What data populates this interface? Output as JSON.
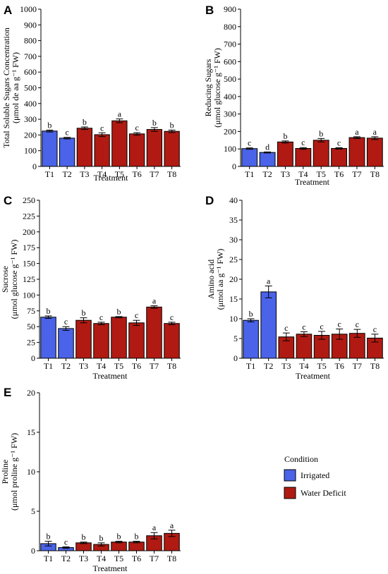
{
  "condition_colors": {
    "Irrigated": "#4a63e8",
    "Water Deficit": "#b01a12"
  },
  "legend": {
    "title": "Condition",
    "items": [
      {
        "label": "Irrigated",
        "color": "#4a63e8"
      },
      {
        "label": "Water Deficit",
        "color": "#b01a12"
      }
    ]
  },
  "chart_data": [
    {
      "type": "bar",
      "panel": "A",
      "categories": [
        "T1",
        "T2",
        "T3",
        "T4",
        "T5",
        "T6",
        "T7",
        "T8"
      ],
      "conditions": [
        "Irrigated",
        "Irrigated",
        "Water Deficit",
        "Water Deficit",
        "Water Deficit",
        "Water Deficit",
        "Water Deficit",
        "Water Deficit"
      ],
      "values": [
        225,
        180,
        243,
        202,
        290,
        207,
        235,
        223
      ],
      "errors": [
        6,
        5,
        8,
        12,
        12,
        8,
        12,
        8
      ],
      "letters": [
        "b",
        "c",
        "b",
        "c",
        "a",
        "c",
        "b",
        "b"
      ],
      "xlabel": "Treatment",
      "ylabel": [
        "Total Soluble Sugars Concentration",
        "(μmol de aa g⁻¹ FW)"
      ],
      "ylim": [
        0,
        1000
      ],
      "yticks": [
        0,
        100,
        200,
        300,
        400,
        500,
        600,
        700,
        800,
        900,
        1000
      ],
      "grid": false
    },
    {
      "type": "bar",
      "panel": "B",
      "categories": [
        "T1",
        "T2",
        "T3",
        "T4",
        "T5",
        "T6",
        "T7",
        "T8"
      ],
      "conditions": [
        "Irrigated",
        "Irrigated",
        "Water Deficit",
        "Water Deficit",
        "Water Deficit",
        "Water Deficit",
        "Water Deficit",
        "Water Deficit"
      ],
      "values": [
        102,
        80,
        140,
        103,
        150,
        103,
        165,
        162
      ],
      "errors": [
        4,
        3,
        6,
        5,
        10,
        4,
        5,
        8
      ],
      "letters": [
        "c",
        "d",
        "b",
        "c",
        "b",
        "c",
        "a",
        "a"
      ],
      "xlabel": "Treatment",
      "ylabel": [
        "Reducing Sugars",
        "(μmol glucose g⁻¹ FW)"
      ],
      "ylim": [
        0,
        900
      ],
      "yticks": [
        0,
        100,
        200,
        300,
        400,
        500,
        600,
        700,
        800,
        900
      ],
      "grid": false
    },
    {
      "type": "bar",
      "panel": "C",
      "categories": [
        "T1",
        "T2",
        "T3",
        "T4",
        "T5",
        "T6",
        "T7",
        "T8"
      ],
      "conditions": [
        "Irrigated",
        "Irrigated",
        "Water Deficit",
        "Water Deficit",
        "Water Deficit",
        "Water Deficit",
        "Water Deficit",
        "Water Deficit"
      ],
      "values": [
        65,
        47,
        60,
        55,
        65,
        56,
        81,
        55
      ],
      "errors": [
        2,
        3,
        4,
        2,
        1,
        4,
        2,
        2
      ],
      "letters": [
        "b",
        "c",
        "b",
        "c",
        "b",
        "c",
        "a",
        "c"
      ],
      "xlabel": "Treatment",
      "ylabel": [
        "Sucrose",
        "(μmol glucose g⁻¹ FW)"
      ],
      "ylim": [
        0,
        250
      ],
      "yticks": [
        0,
        25,
        50,
        75,
        100,
        125,
        150,
        175,
        200,
        225,
        250
      ],
      "grid": false
    },
    {
      "type": "bar",
      "panel": "D",
      "categories": [
        "T1",
        "T2",
        "T3",
        "T4",
        "T5",
        "T6",
        "T7",
        "T8"
      ],
      "conditions": [
        "Irrigated",
        "Irrigated",
        "Water Deficit",
        "Water Deficit",
        "Water Deficit",
        "Water Deficit",
        "Water Deficit",
        "Water Deficit"
      ],
      "values": [
        9.6,
        16.8,
        5.4,
        6.1,
        5.8,
        6.1,
        6.3,
        5.1
      ],
      "errors": [
        0.4,
        1.5,
        1.0,
        0.6,
        1.0,
        1.3,
        1.0,
        1.0
      ],
      "letters": [
        "b",
        "a",
        "c",
        "c",
        "c",
        "c",
        "c",
        "c"
      ],
      "xlabel": "Treatment",
      "ylabel": [
        "Amino acid",
        "(μmol aa g⁻¹ FW)"
      ],
      "ylim": [
        0,
        40
      ],
      "yticks": [
        0,
        5,
        10,
        15,
        20,
        25,
        30,
        35,
        40
      ],
      "grid": false
    },
    {
      "type": "bar",
      "panel": "E",
      "categories": [
        "T1",
        "T2",
        "T3",
        "T4",
        "T5",
        "T6",
        "T7",
        "T8"
      ],
      "conditions": [
        "Irrigated",
        "Irrigated",
        "Water Deficit",
        "Water Deficit",
        "Water Deficit",
        "Water Deficit",
        "Water Deficit",
        "Water Deficit"
      ],
      "values": [
        0.9,
        0.4,
        1.0,
        0.8,
        1.1,
        1.1,
        1.9,
        2.2
      ],
      "errors": [
        0.3,
        0.1,
        0.1,
        0.2,
        0.1,
        0.1,
        0.4,
        0.4
      ],
      "letters": [
        "b",
        "c",
        "b",
        "b",
        "b",
        "b",
        "a",
        "a"
      ],
      "xlabel": "Treatment",
      "ylabel": [
        "Proline",
        "(μmol proline g⁻¹ FW)"
      ],
      "ylim": [
        0,
        20
      ],
      "yticks": [
        0,
        5,
        10,
        15,
        20
      ],
      "grid": false
    }
  ]
}
